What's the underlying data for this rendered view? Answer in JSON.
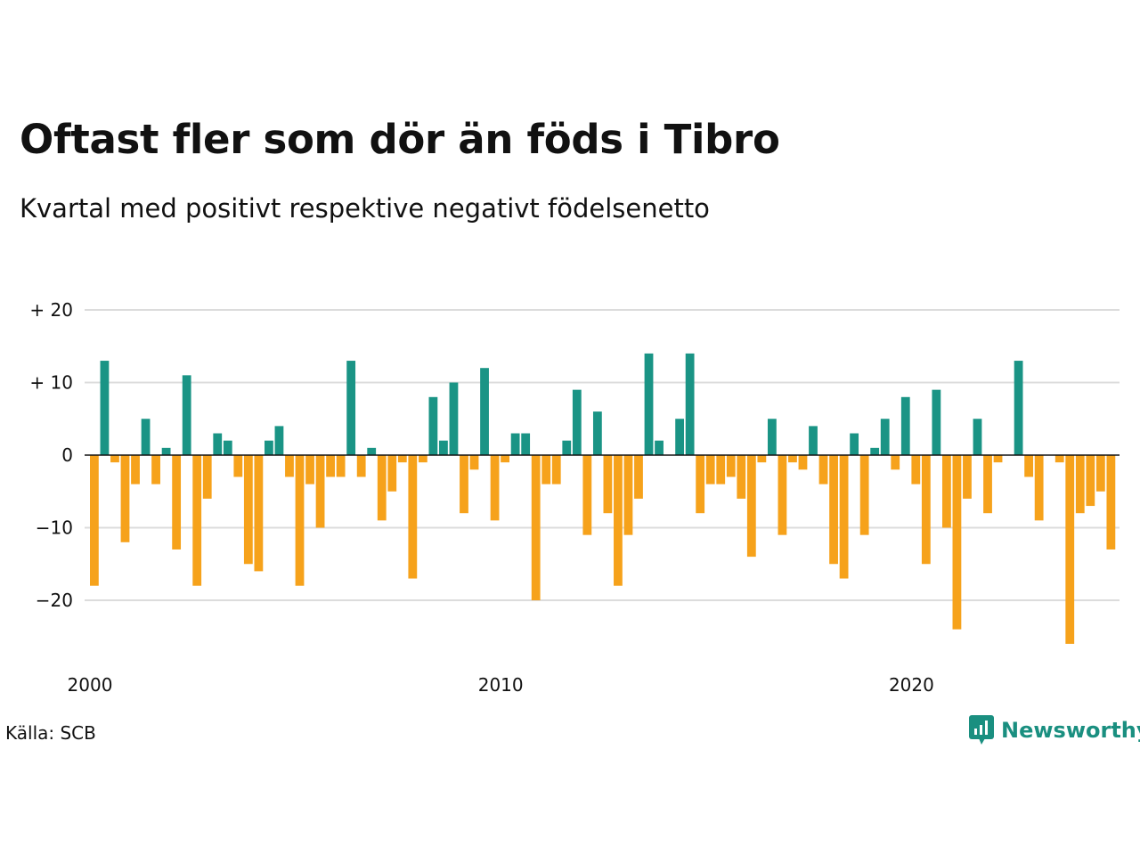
{
  "title": "Oftast fler som dör än föds i Tibro",
  "subtitle": "Kvartal med positivt respektive negativt födelsenetto",
  "source": "Källa: SCB",
  "brand": "Newsworthy",
  "colors": {
    "positive": "#1a9485",
    "negative": "#f6a21b",
    "grid": "#dcdcdc",
    "zero_line": "#111111",
    "brand": "#1a8f80"
  },
  "chart_data": {
    "type": "bar",
    "x_start": "2000 Q1",
    "x_ticks": [
      "2000",
      "2010",
      "2020"
    ],
    "y_ticks": [
      {
        "value": 20,
        "label": "+ 20"
      },
      {
        "value": 10,
        "label": "+ 10"
      },
      {
        "value": 0,
        "label": "0"
      },
      {
        "value": -10,
        "label": "−10"
      },
      {
        "value": -20,
        "label": "−20"
      }
    ],
    "ylim": [
      -26,
      20
    ],
    "grid": true,
    "values": [
      -18,
      13,
      -1,
      -12,
      -4,
      5,
      -4,
      1,
      -13,
      11,
      -18,
      -6,
      3,
      2,
      -3,
      -15,
      -16,
      2,
      4,
      -3,
      -18,
      -4,
      -10,
      -3,
      -3,
      13,
      -3,
      1,
      -9,
      -5,
      -1,
      -17,
      -1,
      8,
      2,
      10,
      -8,
      -2,
      12,
      -9,
      -1,
      3,
      3,
      -20,
      -4,
      -4,
      2,
      9,
      -11,
      6,
      -8,
      -18,
      -11,
      -6,
      14,
      2,
      0,
      5,
      14,
      -8,
      -4,
      -4,
      -3,
      -6,
      -14,
      -1,
      5,
      -11,
      -1,
      -2,
      4,
      -4,
      -15,
      -17,
      3,
      -11,
      1,
      5,
      -2,
      8,
      -4,
      -15,
      9,
      -10,
      -24,
      -6,
      5,
      -8,
      -1,
      0,
      13,
      -3,
      -9,
      0,
      -1,
      -26,
      -8,
      -7,
      -5,
      -13
    ]
  }
}
